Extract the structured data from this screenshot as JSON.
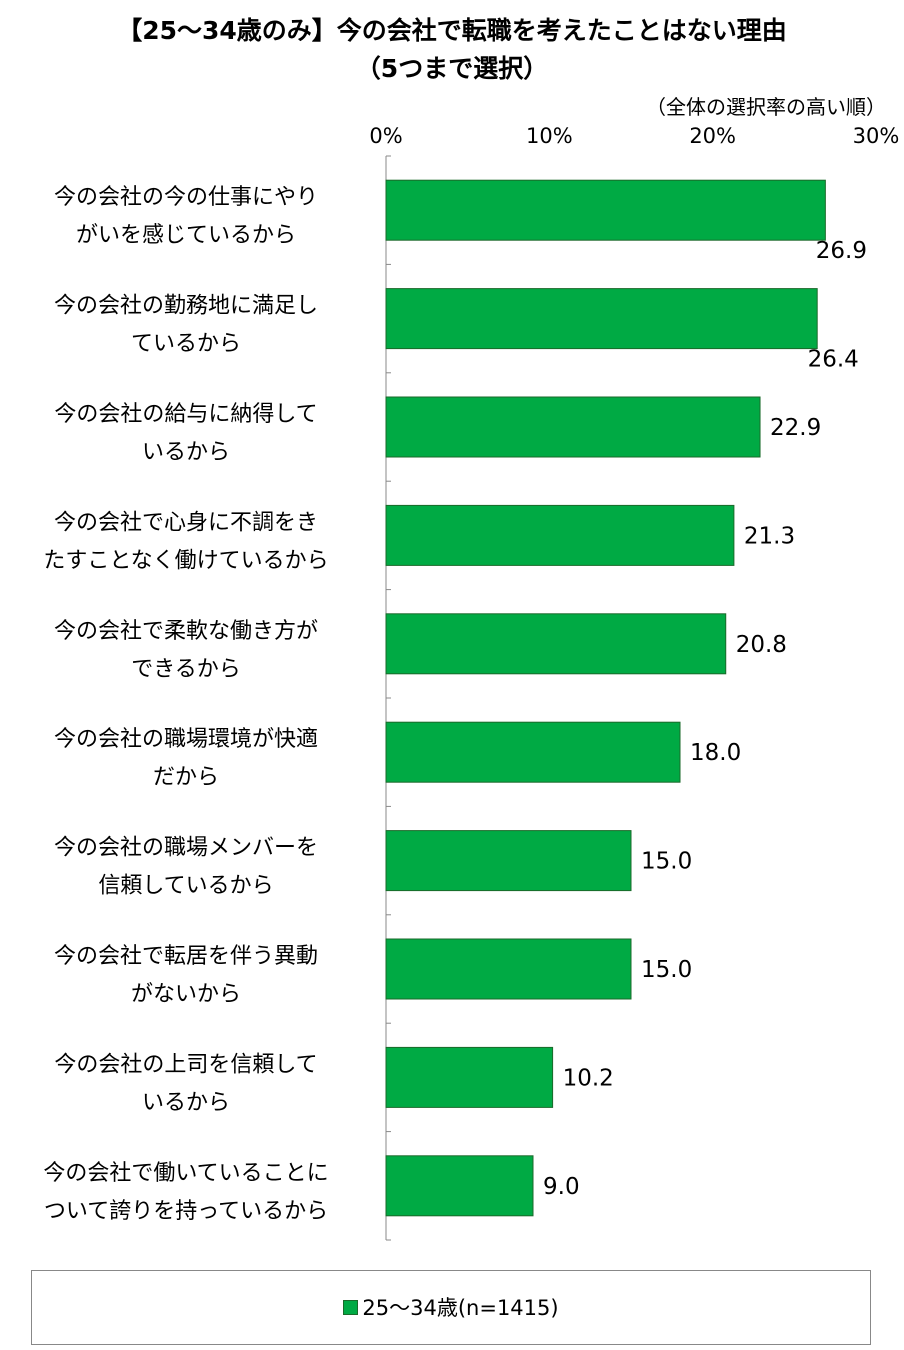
{
  "title": {
    "line1": "【25～34歳のみ】今の会社で転職を考えたことはない理由",
    "line2": "（5つまで選択）"
  },
  "note": "（全体の選択率の高い順）",
  "legend": {
    "label": "25～34歳(n=1415)"
  },
  "colors": {
    "bar": "#00aa44",
    "bar_border": "#1a6a2a",
    "axis": "#888888"
  },
  "chart_data": {
    "type": "bar",
    "orientation": "horizontal",
    "xlim": [
      0,
      30
    ],
    "ticks": [
      "0%",
      "10%",
      "20%",
      "30%"
    ],
    "tick_values": [
      0,
      10,
      20,
      30
    ],
    "categories": [
      [
        "今の会社の今の仕事にやり",
        "がいを感じているから"
      ],
      [
        "今の会社の勤務地に満足し",
        "ているから"
      ],
      [
        "今の会社の給与に納得して",
        "いるから"
      ],
      [
        "今の会社で心身に不調をき",
        "たすことなく働けているから"
      ],
      [
        "今の会社で柔軟な働き方が",
        "できるから"
      ],
      [
        "今の会社の職場環境が快適",
        "だから"
      ],
      [
        "今の会社の職場メンバーを",
        "信頼しているから"
      ],
      [
        "今の会社で転居を伴う異動",
        "がないから"
      ],
      [
        "今の会社の上司を信頼して",
        "いるから"
      ],
      [
        "今の会社で働いていることに",
        "ついて誇りを持っているから"
      ]
    ],
    "series": [
      {
        "name": "25～34歳(n=1415)",
        "values": [
          26.9,
          26.4,
          22.9,
          21.3,
          20.8,
          18.0,
          15.0,
          15.0,
          10.2,
          9.0
        ],
        "labels": [
          "26.9",
          "26.4",
          "22.9",
          "21.3",
          "20.8",
          "18.0",
          "15.0",
          "15.0",
          "10.2",
          "9.0"
        ]
      }
    ],
    "grid": false,
    "legend_position": "bottom"
  }
}
